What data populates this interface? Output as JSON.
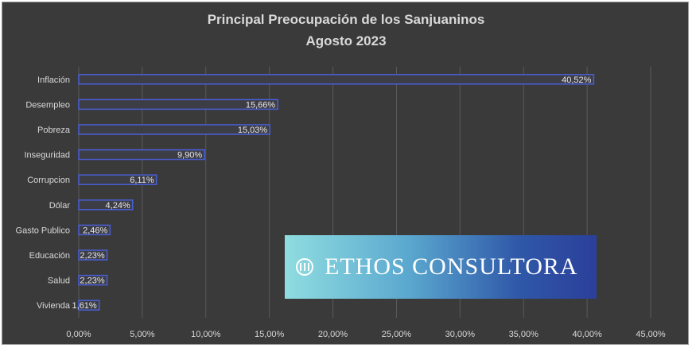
{
  "chart_data": {
    "type": "bar",
    "orientation": "horizontal",
    "title": "Principal Preocupación de los Sanjuaninos",
    "subtitle": "Agosto 2023",
    "categories": [
      "Inflación",
      "Desempleo",
      "Pobreza",
      "Inseguridad",
      "Corrupcion",
      "Dólar",
      "Gasto Publico",
      "Educación",
      "Salud",
      "Vivienda"
    ],
    "values": [
      40.52,
      15.66,
      15.03,
      9.9,
      6.11,
      4.24,
      2.46,
      2.23,
      2.23,
      1.61
    ],
    "value_labels": [
      "40,52%",
      "15,66%",
      "15,03%",
      "9,90%",
      "6,11%",
      "4,24%",
      "2,46%",
      "2,23%",
      "2,23%",
      "1,61%"
    ],
    "xlim": [
      0,
      45
    ],
    "x_ticks": [
      0,
      5,
      10,
      15,
      20,
      25,
      30,
      35,
      40,
      45
    ],
    "x_tick_labels": [
      "0,00%",
      "5,00%",
      "10,00%",
      "15,00%",
      "20,00%",
      "25,00%",
      "30,00%",
      "35,00%",
      "40,00%",
      "45,00%"
    ],
    "grid": true,
    "colors": {
      "background": "#3a3a3a",
      "bar_fill": "#3d3d46",
      "bar_edge": "#4a5fd6",
      "grid": "#5a5a5a",
      "text": "#d9d9d9"
    }
  },
  "watermark": {
    "text": "ETHOS CONSULTORA",
    "icon": "pillars-icon"
  }
}
